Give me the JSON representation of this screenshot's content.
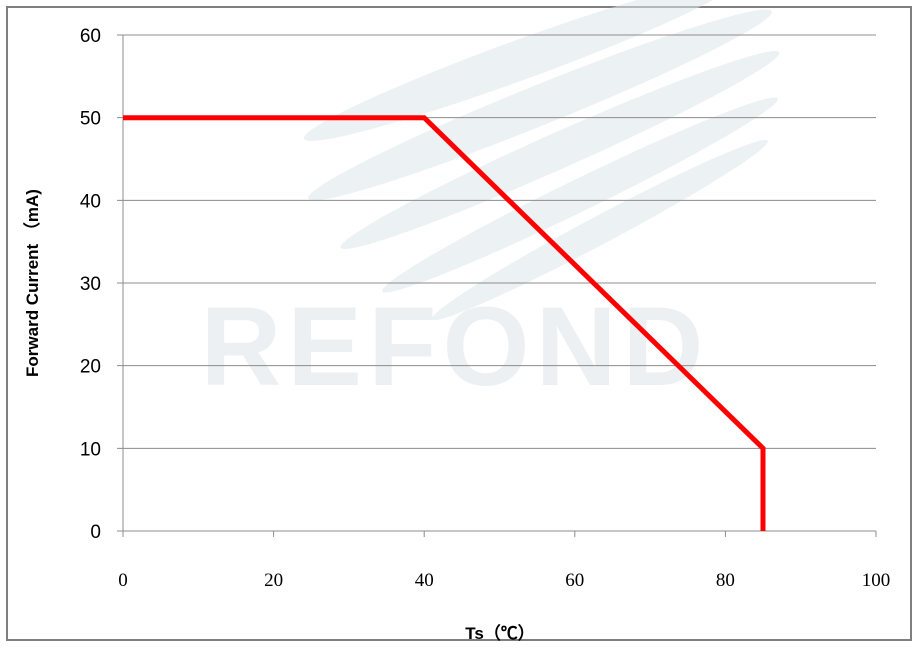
{
  "chart_data": {
    "type": "line",
    "title": "",
    "xlabel": "Ts（℃）",
    "ylabel": "Forward Current （mA)",
    "xlim": [
      0,
      100
    ],
    "ylim": [
      0,
      60
    ],
    "xticks": [
      "0",
      "20",
      "40",
      "60",
      "80",
      "100"
    ],
    "yticks": [
      "0",
      "10",
      "20",
      "30",
      "40",
      "50",
      "60"
    ],
    "grid": "horizontal",
    "watermark": "REFOND",
    "series": [
      {
        "color": "#ff0000",
        "x": [
          0,
          40,
          85,
          85
        ],
        "y": [
          50,
          50,
          10,
          0
        ]
      }
    ]
  }
}
